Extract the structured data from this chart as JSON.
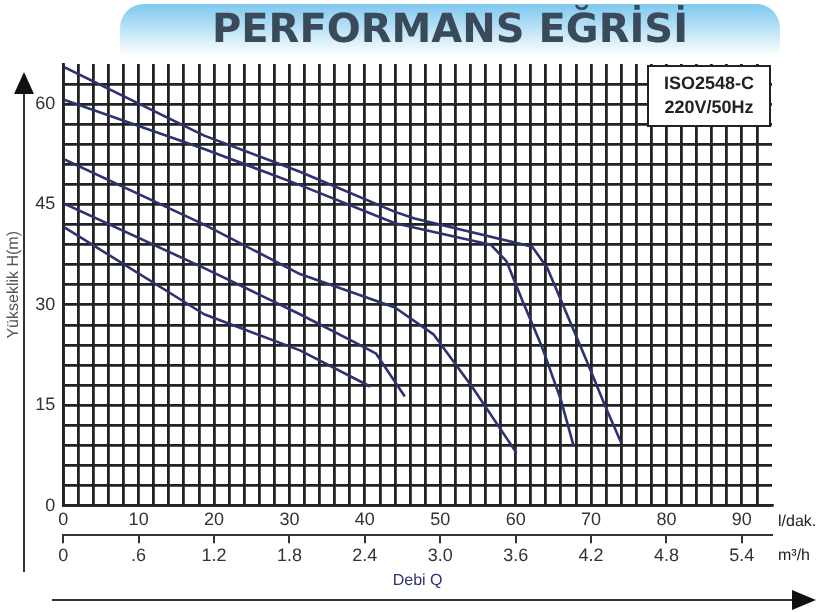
{
  "chart_data": {
    "type": "line",
    "title": "PERFORMANS EĞRİSİ",
    "xlabel": "Debi Q",
    "ylabel": "Yükseklik H(m)",
    "annotations": [
      "ISO2548-C",
      "220V/50Hz",
      "l/dak.",
      "m³/h"
    ],
    "xlim": [
      0,
      94
    ],
    "ylim": [
      0,
      66
    ],
    "xticks": [
      0,
      {
        "value": 2,
        "label": null
      },
      {
        "value": 4,
        "label": null
      },
      {
        "value": 6,
        "label": null
      },
      {
        "value": 8,
        "label": null
      },
      10,
      {
        "value": 12,
        "label": null
      },
      {
        "value": 14,
        "label": null
      },
      {
        "value": 16,
        "label": null
      },
      {
        "value": 18,
        "label": null
      },
      20,
      {
        "value": 22,
        "label": null
      },
      {
        "value": 24,
        "label": null
      },
      {
        "value": 26,
        "label": null
      },
      {
        "value": 28,
        "label": null
      },
      30,
      {
        "value": 32,
        "label": null
      },
      {
        "value": 34,
        "label": null
      },
      {
        "value": 36,
        "label": null
      },
      {
        "value": 38,
        "label": null
      },
      40,
      {
        "value": 42,
        "label": null
      },
      {
        "value": 44,
        "label": null
      },
      {
        "value": 46,
        "label": null
      },
      {
        "value": 48,
        "label": null
      },
      50,
      {
        "value": 52,
        "label": null
      },
      {
        "value": 54,
        "label": null
      },
      {
        "value": 56,
        "label": null
      },
      {
        "value": 58,
        "label": null
      },
      60,
      {
        "value": 62,
        "label": null
      },
      {
        "value": 64,
        "label": null
      },
      {
        "value": 66,
        "label": null
      },
      {
        "value": 68,
        "label": null
      },
      70,
      {
        "value": 72,
        "label": null
      },
      {
        "value": 74,
        "label": null
      },
      {
        "value": 76,
        "label": null
      },
      {
        "value": 78,
        "label": null
      },
      80,
      {
        "value": 82,
        "label": null
      },
      {
        "value": 84,
        "label": null
      },
      {
        "value": 86,
        "label": null
      },
      {
        "value": 88,
        "label": null
      },
      90,
      {
        "value": 92,
        "label": null
      }
    ],
    "yticks": [
      0,
      {
        "value": 3,
        "label": null
      },
      {
        "value": 6,
        "label": null
      },
      {
        "value": 9,
        "label": null
      },
      {
        "value": 12,
        "label": null
      },
      15,
      {
        "value": 18,
        "label": null
      },
      {
        "value": 21,
        "label": null
      },
      {
        "value": 24,
        "label": null
      },
      {
        "value": 27,
        "label": null
      },
      30,
      {
        "value": 33,
        "label": null
      },
      {
        "value": 36,
        "label": null
      },
      {
        "value": 39,
        "label": null
      },
      {
        "value": 42,
        "label": null
      },
      45,
      {
        "value": 48,
        "label": null
      },
      {
        "value": 51,
        "label": null
      },
      {
        "value": 54,
        "label": null
      },
      {
        "value": 57,
        "label": null
      },
      60,
      {
        "value": 63,
        "label": null
      }
    ],
    "x2lim": [
      0,
      5.64
    ],
    "x2ticks": [
      0,
      {
        "value": 0.6,
        "label": ".6"
      },
      1.2,
      1.8,
      2.4,
      {
        "value": 3,
        "label": "3.0"
      },
      3.6,
      4.2,
      4.8,
      5.4
    ],
    "grid": true,
    "legend": false,
    "marker": "none",
    "line_style": "solid",
    "series": [
      {
        "color": "#2e3270",
        "x": [
          0,
          18.7,
          31.4,
          44,
          46.6,
          62.2,
          64.2,
          66.8,
          69.4,
          71.9,
          74.0
        ],
        "values": [
          65.6,
          55.3,
          49.9,
          43.9,
          42.9,
          38.7,
          35.5,
          28.6,
          21.7,
          14.8,
          9.4
        ]
      },
      {
        "color": "#2e3270",
        "x": [
          0,
          18.7,
          31.4,
          44,
          56.7,
          58.8,
          60.9,
          63.5,
          66.0,
          67.7
        ],
        "values": [
          60.7,
          53.3,
          47.9,
          42.2,
          39,
          36.5,
          30.6,
          23.7,
          15.8,
          8.9
        ]
      },
      {
        "color": "#2e3270",
        "x": [
          0,
          18.7,
          31.4,
          44,
          49.1,
          54.2,
          60.1
        ],
        "values": [
          51.8,
          42,
          34.6,
          29.6,
          25.6,
          17.8,
          7.9
        ]
      },
      {
        "color": "#2e3270",
        "x": [
          0,
          18.7,
          31.4,
          39,
          41.5,
          45.3
        ],
        "values": [
          45.2,
          35.5,
          28.6,
          24.2,
          22.7,
          16.3
        ]
      },
      {
        "color": "#2e3270",
        "x": [
          0,
          18.7,
          31.4,
          40.7
        ],
        "values": [
          41.7,
          28.6,
          23.2,
          17.8
        ]
      }
    ]
  }
}
